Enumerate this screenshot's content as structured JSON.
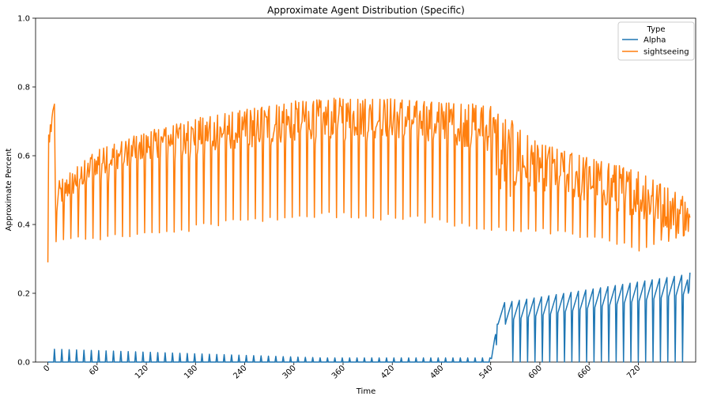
{
  "chart_data": {
    "type": "line",
    "title": "Approximate Agent Distribution (Specific)",
    "xlabel": "Time",
    "ylabel": "Approximate Percent",
    "xlim": [
      -15,
      790
    ],
    "ylim": [
      0,
      1.0
    ],
    "xticks": [
      0,
      60,
      120,
      180,
      240,
      300,
      360,
      420,
      480,
      540,
      600,
      660,
      720
    ],
    "yticks": [
      0.0,
      0.2,
      0.4,
      0.6,
      0.8,
      1.0
    ],
    "xtick_rotation": 45,
    "grid": false,
    "legend": {
      "title": "Type",
      "placement": "top-right"
    },
    "series": [
      {
        "name": "Alpha",
        "color": "#1f77b4",
        "segments": [
          {
            "x_start": 0,
            "x_end": 540,
            "baseline": 0.0,
            "spike_every": 9,
            "spike_peaks_start": 0.038,
            "spike_peaks_end": 0.012
          },
          {
            "x_start": 540,
            "x_end": 780,
            "baseline_start": 0.0,
            "teeth_every": 9,
            "tooth_low_start": 0.11,
            "tooth_low_end": 0.19,
            "tooth_high_start": 0.17,
            "tooth_high_end": 0.255
          }
        ],
        "end_value": 0.26
      },
      {
        "name": "sightseeing",
        "color": "#ff7f0e",
        "start_value": 0.29,
        "early_peak": {
          "x": 8,
          "y": 0.75
        },
        "upper_envelope": [
          [
            10,
            0.52
          ],
          [
            60,
            0.62
          ],
          [
            120,
            0.67
          ],
          [
            180,
            0.71
          ],
          [
            240,
            0.74
          ],
          [
            300,
            0.76
          ],
          [
            360,
            0.77
          ],
          [
            420,
            0.77
          ],
          [
            480,
            0.76
          ],
          [
            540,
            0.75
          ],
          [
            600,
            0.64
          ],
          [
            660,
            0.6
          ],
          [
            720,
            0.56
          ],
          [
            780,
            0.48
          ]
        ],
        "body_mean": [
          [
            10,
            0.48
          ],
          [
            60,
            0.58
          ],
          [
            120,
            0.63
          ],
          [
            180,
            0.66
          ],
          [
            240,
            0.68
          ],
          [
            300,
            0.7
          ],
          [
            360,
            0.71
          ],
          [
            420,
            0.71
          ],
          [
            480,
            0.7
          ],
          [
            540,
            0.68
          ],
          [
            550,
            0.6
          ],
          [
            600,
            0.57
          ],
          [
            660,
            0.53
          ],
          [
            720,
            0.49
          ],
          [
            780,
            0.42
          ]
        ],
        "dip_every": 9,
        "dip_lows": [
          [
            10,
            0.35
          ],
          [
            60,
            0.36
          ],
          [
            120,
            0.37
          ],
          [
            180,
            0.39
          ],
          [
            240,
            0.41
          ],
          [
            300,
            0.42
          ],
          [
            360,
            0.43
          ],
          [
            420,
            0.42
          ],
          [
            480,
            0.41
          ],
          [
            540,
            0.39
          ],
          [
            600,
            0.38
          ],
          [
            660,
            0.36
          ],
          [
            720,
            0.33
          ],
          [
            780,
            0.38
          ]
        ],
        "end_value": 0.42
      }
    ]
  }
}
